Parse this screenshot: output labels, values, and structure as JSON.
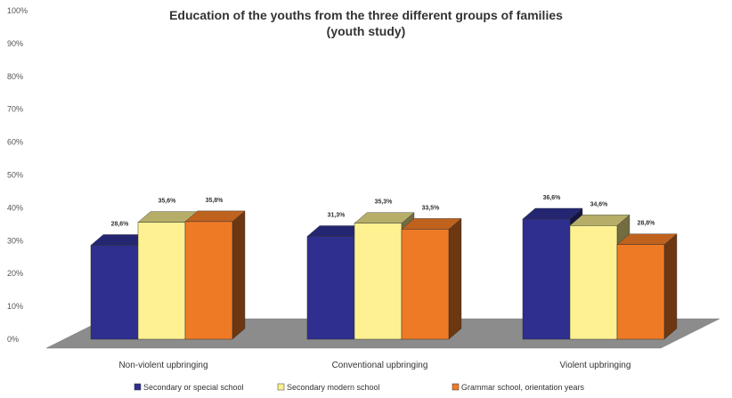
{
  "chart_data": {
    "type": "bar",
    "title": "Education of the youths from the three different groups of families",
    "subtitle": "(youth study)",
    "categories": [
      "Non-violent upbringing",
      "Conventional upbringing",
      "Violent upbringing"
    ],
    "series": [
      {
        "name": "Secondary or special school",
        "values": [
          28.6,
          31.3,
          36.6
        ],
        "labels": [
          "28,6%",
          "31,3%",
          "36,6%"
        ],
        "color": "#2e2f8e"
      },
      {
        "name": "Secondary modern school",
        "values": [
          35.6,
          35.3,
          34.6
        ],
        "labels": [
          "35,6%",
          "35,3%",
          "34,6%"
        ],
        "color": "#fdf191"
      },
      {
        "name": "Grammar school, orientation years",
        "values": [
          35.8,
          33.5,
          28.8
        ],
        "labels": [
          "35,8%",
          "33,5%",
          "28,8%"
        ],
        "color": "#ef7a26"
      }
    ],
    "yticks": [
      "0%",
      "10%",
      "20%",
      "30%",
      "40%",
      "50%",
      "60%",
      "70%",
      "80%",
      "90%",
      "100%"
    ],
    "ylim": [
      0,
      100
    ],
    "legend_position": "bottom",
    "grid": false,
    "style": "3d",
    "floor_color": "#8c8c8c"
  }
}
